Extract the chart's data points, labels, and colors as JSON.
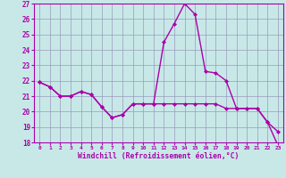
{
  "xlabel": "Windchill (Refroidissement éolien,°C)",
  "hours": [
    0,
    1,
    2,
    3,
    4,
    5,
    6,
    7,
    8,
    9,
    10,
    11,
    12,
    13,
    14,
    15,
    16,
    17,
    18,
    19,
    20,
    21,
    22,
    23
  ],
  "line1": [
    21.9,
    21.6,
    21.0,
    21.0,
    21.3,
    21.1,
    20.3,
    19.6,
    19.8,
    20.5,
    20.5,
    20.5,
    24.5,
    25.7,
    27.0,
    26.3,
    22.6,
    22.5,
    22.0,
    20.2,
    20.2,
    20.2,
    19.3,
    18.7
  ],
  "line2": [
    21.9,
    21.6,
    21.0,
    21.0,
    21.3,
    21.1,
    20.3,
    19.6,
    19.8,
    20.5,
    20.5,
    20.5,
    20.5,
    20.5,
    20.5,
    20.5,
    20.5,
    20.5,
    20.2,
    20.2,
    20.2,
    20.2,
    19.3,
    17.8
  ],
  "ylim": [
    18,
    27
  ],
  "yticks": [
    18,
    19,
    20,
    21,
    22,
    23,
    24,
    25,
    26,
    27
  ],
  "line_color": "#aa00aa",
  "bg_color": "#c8e8e8",
  "grid_color": "#9999bb",
  "marker": "D",
  "marker_size": 2,
  "line_width": 1.0
}
